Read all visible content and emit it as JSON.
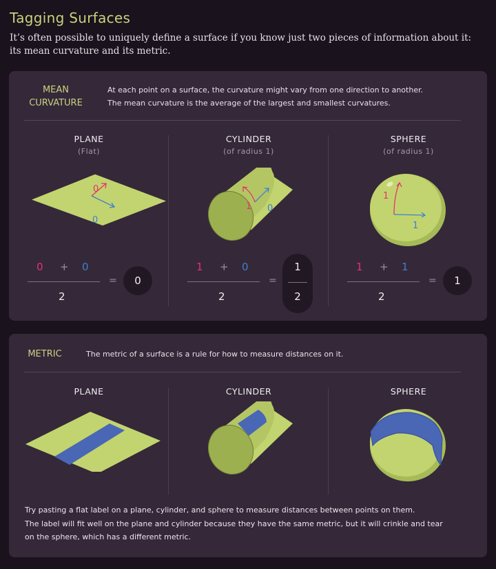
{
  "title": "Tagging Surfaces",
  "subtitle": "It’s often possible to uniquely define a surface if you know just two pieces of information about it: its mean curvature and its metric.",
  "colors": {
    "accent": "#c9d27f",
    "surface": "#c2d46f",
    "first_curvature": "#e2336b",
    "second_curvature": "#3d80cf",
    "label": "#4a67b5"
  },
  "mean_curvature": {
    "heading_line1": "MEAN",
    "heading_line2": "CURVATURE",
    "desc_line1": "At each point on a surface, the curvature might vary from one direction to another.",
    "desc_line2": "The mean curvature is the average of the largest and smallest curvatures.",
    "columns": [
      {
        "name": "PLANE",
        "sub": "(Flat)",
        "k1": "0",
        "k2": "0",
        "plus": "+",
        "den": "2",
        "eq": "=",
        "result": "0"
      },
      {
        "name": "CYLINDER",
        "sub": "(of radius 1)",
        "k1": "1",
        "k2": "0",
        "plus": "+",
        "den": "2",
        "eq": "=",
        "result_num": "1",
        "result_den": "2"
      },
      {
        "name": "SPHERE",
        "sub": "(of radius 1)",
        "k1": "1",
        "k2": "1",
        "plus": "+",
        "den": "2",
        "eq": "=",
        "result": "1"
      }
    ]
  },
  "metric": {
    "heading": "METRIC",
    "desc": "The metric of a surface is a rule for how to measure distances on it.",
    "columns": [
      {
        "name": "PLANE"
      },
      {
        "name": "CYLINDER"
      },
      {
        "name": "SPHERE"
      }
    ],
    "foot_line1": "Try pasting a flat label on a plane, cylinder, and sphere to measure distances between points on them.",
    "foot_line2": "The label will fit well on the plane and cylinder because they have the same metric, but it will crinkle and tear",
    "foot_line3": "on the sphere, which has a different metric."
  }
}
